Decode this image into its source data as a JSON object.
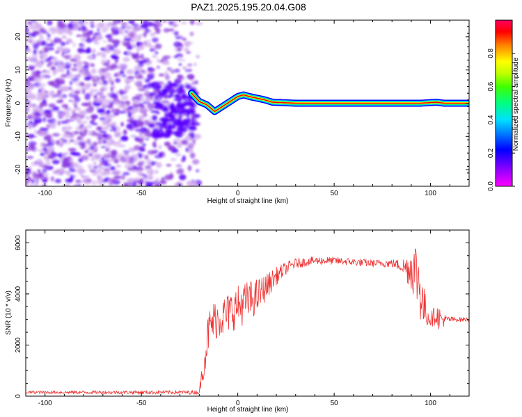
{
  "title": "PAZ1.2025.195.20.04.G08",
  "chart_data": [
    {
      "type": "heatmap",
      "xlabel": "Height of straight line (km)",
      "ylabel": "Frequency (Hz)",
      "xlim": [
        -110,
        120
      ],
      "ylim": [
        -25,
        25
      ],
      "x_ticks": [
        -100,
        -50,
        0,
        50,
        100
      ],
      "y_ticks": [
        -20,
        -10,
        0,
        10,
        20
      ],
      "x_tick_labels": [
        "-100",
        "-50",
        "0",
        "50",
        "100"
      ],
      "y_tick_labels": [
        "-20",
        "-10",
        "0",
        "10",
        "20"
      ],
      "signal_trace": {
        "x": [
          -24,
          -20,
          -16,
          -12,
          -8,
          -4,
          0,
          3,
          6,
          10,
          14,
          18,
          22,
          26,
          30,
          40,
          60,
          80,
          95,
          103,
          107,
          120
        ],
        "y": [
          3,
          0.5,
          -0.5,
          -2.5,
          -1,
          0.5,
          2,
          2.5,
          2,
          1.5,
          1,
          0.3,
          0.2,
          0.1,
          0,
          0,
          0,
          0,
          0,
          0.3,
          0,
          0
        ]
      },
      "noise_region_x": [
        -110,
        -20
      ],
      "colorbar": {
        "label": "Normalized spectral amplitude",
        "range": [
          0,
          1
        ],
        "ticks": [
          0.0,
          0.2,
          0.4,
          0.6,
          0.8
        ],
        "tick_labels": [
          "0.0",
          "0.2",
          "0.4",
          "0.6",
          "0.8"
        ],
        "colors": [
          "#ffffff",
          "#d4b0f0",
          "#9040e0",
          "#5a00ff",
          "#0000ff",
          "#00c8ff",
          "#00ff60",
          "#80ff00",
          "#ffff00",
          "#ff8000",
          "#ff0000",
          "#ff0060"
        ]
      }
    },
    {
      "type": "line",
      "xlabel": "Height of straight line (km)",
      "ylabel": "SNR (10 * v/v)",
      "xlim": [
        -110,
        120
      ],
      "ylim": [
        0,
        6500
      ],
      "x_ticks": [
        -100,
        -50,
        0,
        50,
        100
      ],
      "y_ticks": [
        0,
        2000,
        4000,
        6000
      ],
      "x_tick_labels": [
        "-100",
        "-50",
        "0",
        "50",
        "100"
      ],
      "y_tick_labels": [
        "0",
        "2000",
        "4000",
        "6000"
      ],
      "color": "#ee3333",
      "series_envelope": {
        "x": [
          -110,
          -20,
          -17,
          -15,
          -12,
          -8,
          -4,
          0,
          5,
          10,
          15,
          20,
          25,
          30,
          35,
          40,
          50,
          60,
          70,
          80,
          85,
          88,
          92,
          94,
          96,
          98,
          100,
          103,
          105,
          108,
          112,
          120
        ],
        "mean": [
          150,
          150,
          1600,
          2600,
          3000,
          3100,
          3300,
          3500,
          3700,
          3900,
          4300,
          4700,
          5000,
          5200,
          5250,
          5300,
          5300,
          5250,
          5200,
          5200,
          5100,
          5000,
          5000,
          4500,
          3600,
          3200,
          3000,
          3200,
          3000,
          3000,
          3000,
          3000
        ],
        "spread": [
          60,
          80,
          700,
          800,
          800,
          800,
          800,
          850,
          800,
          700,
          500,
          350,
          250,
          200,
          180,
          160,
          150,
          150,
          150,
          160,
          250,
          600,
          1200,
          1400,
          1000,
          500,
          300,
          400,
          500,
          150,
          100,
          80
        ]
      }
    }
  ]
}
